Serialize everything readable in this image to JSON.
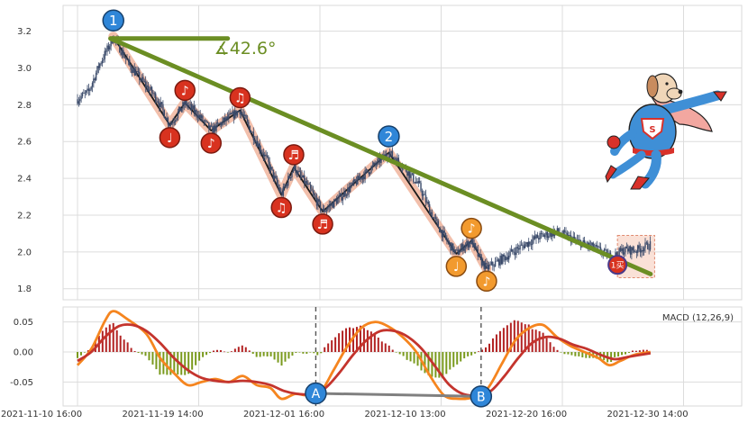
{
  "chart_data": [
    {
      "type": "candlestick",
      "x_ticks": [
        "2021-11-10 16:00",
        "2021-11-19 14:00",
        "2021-12-01 16:00",
        "2021-12-10 13:00",
        "2021-12-20 16:00",
        "2021-12-30 14:00"
      ],
      "y_ticks": [
        "3.2",
        "3.0",
        "2.8",
        "2.6",
        "2.4",
        "2.2",
        "2.0",
        "1.8"
      ],
      "ylim": [
        1.74,
        3.34
      ],
      "price_path": [
        [
          0.0,
          2.83
        ],
        [
          0.4,
          2.87
        ],
        [
          0.8,
          3.02
        ],
        [
          1.15,
          3.12
        ],
        [
          1.3,
          3.17
        ],
        [
          1.6,
          3.09
        ],
        [
          1.9,
          3.01
        ],
        [
          2.4,
          2.92
        ],
        [
          2.9,
          2.83
        ],
        [
          3.35,
          2.69
        ],
        [
          3.9,
          2.81
        ],
        [
          4.35,
          2.75
        ],
        [
          4.85,
          2.66
        ],
        [
          5.4,
          2.72
        ],
        [
          5.9,
          2.77
        ],
        [
          6.4,
          2.63
        ],
        [
          6.9,
          2.49
        ],
        [
          7.4,
          2.31
        ],
        [
          7.85,
          2.46
        ],
        [
          8.35,
          2.36
        ],
        [
          8.9,
          2.22
        ],
        [
          9.5,
          2.29
        ],
        [
          10.1,
          2.38
        ],
        [
          10.7,
          2.46
        ],
        [
          11.3,
          2.54
        ],
        [
          11.8,
          2.47
        ],
        [
          12.4,
          2.36
        ],
        [
          12.9,
          2.19
        ],
        [
          13.4,
          2.06
        ],
        [
          13.75,
          1.99
        ],
        [
          14.0,
          2.03
        ],
        [
          14.3,
          2.06
        ],
        [
          14.6,
          1.96
        ],
        [
          14.85,
          1.91
        ],
        [
          15.4,
          1.96
        ],
        [
          16.0,
          2.02
        ],
        [
          16.7,
          2.08
        ],
        [
          17.4,
          2.11
        ],
        [
          18.1,
          2.06
        ],
        [
          18.8,
          2.02
        ],
        [
          19.4,
          1.97
        ],
        [
          19.8,
          2.01
        ],
        [
          20.3,
          2.01
        ],
        [
          20.8,
          2.04
        ]
      ],
      "trend_line": {
        "from": [
          1.2,
          3.16
        ],
        "to": [
          20.8,
          1.88
        ],
        "angle_label": "∡42.6°"
      },
      "pattern_points": [
        {
          "label": "1",
          "at": [
            1.3,
            3.17
          ],
          "side": "above",
          "kind": "peak"
        },
        {
          "label": "2",
          "at": [
            11.3,
            2.54
          ],
          "side": "above",
          "kind": "peak"
        }
      ],
      "note_markers": [
        {
          "glyph": "♩",
          "at": [
            3.35,
            2.69
          ],
          "side": "below",
          "tone": "red"
        },
        {
          "glyph": "♪",
          "at": [
            3.9,
            2.81
          ],
          "side": "above",
          "tone": "red"
        },
        {
          "glyph": "♪",
          "at": [
            4.85,
            2.66
          ],
          "side": "below",
          "tone": "red"
        },
        {
          "glyph": "♫",
          "at": [
            5.9,
            2.77
          ],
          "side": "above",
          "tone": "red"
        },
        {
          "glyph": "♫",
          "at": [
            7.4,
            2.31
          ],
          "side": "below",
          "tone": "red"
        },
        {
          "glyph": "♬",
          "at": [
            7.85,
            2.46
          ],
          "side": "above",
          "tone": "red"
        },
        {
          "glyph": "♬",
          "at": [
            8.9,
            2.22
          ],
          "side": "below",
          "tone": "red"
        },
        {
          "glyph": "♩",
          "at": [
            13.75,
            1.99
          ],
          "side": "below",
          "tone": "orange"
        },
        {
          "glyph": "♪",
          "at": [
            14.3,
            2.06
          ],
          "side": "above",
          "tone": "orange"
        },
        {
          "glyph": "♪",
          "at": [
            14.85,
            1.91
          ],
          "side": "below",
          "tone": "orange"
        }
      ],
      "trade_marker": {
        "label": "1买",
        "at": [
          19.6,
          1.93
        ]
      },
      "highlight_box": {
        "x": [
          19.6,
          20.95
        ],
        "y": [
          1.86,
          2.09
        ]
      }
    },
    {
      "type": "line",
      "legend_text": "MACD (12,26,9)",
      "y_ticks": [
        "0.05",
        "0.00",
        "-0.05"
      ],
      "ylim": [
        -0.09,
        0.075
      ],
      "dif_points": [
        [
          0.0,
          -0.022
        ],
        [
          0.5,
          0.005
        ],
        [
          1.0,
          0.052
        ],
        [
          1.3,
          0.068
        ],
        [
          1.8,
          0.055
        ],
        [
          2.5,
          0.03
        ],
        [
          3.0,
          -0.01
        ],
        [
          3.5,
          -0.035
        ],
        [
          4.0,
          -0.055
        ],
        [
          4.5,
          -0.05
        ],
        [
          5.0,
          -0.045
        ],
        [
          5.5,
          -0.05
        ],
        [
          6.0,
          -0.04
        ],
        [
          6.5,
          -0.055
        ],
        [
          7.0,
          -0.06
        ],
        [
          7.4,
          -0.078
        ],
        [
          7.9,
          -0.07
        ],
        [
          8.3,
          -0.072
        ],
        [
          8.8,
          -0.068
        ],
        [
          9.3,
          -0.03
        ],
        [
          9.8,
          0.01
        ],
        [
          10.3,
          0.04
        ],
        [
          10.8,
          0.05
        ],
        [
          11.3,
          0.042
        ],
        [
          11.8,
          0.025
        ],
        [
          12.3,
          0.0
        ],
        [
          12.8,
          -0.04
        ],
        [
          13.3,
          -0.072
        ],
        [
          13.8,
          -0.078
        ],
        [
          14.4,
          -0.075
        ],
        [
          14.9,
          -0.06
        ],
        [
          15.4,
          -0.02
        ],
        [
          15.9,
          0.02
        ],
        [
          16.4,
          0.04
        ],
        [
          16.9,
          0.045
        ],
        [
          17.4,
          0.025
        ],
        [
          17.9,
          0.01
        ],
        [
          18.4,
          0.0
        ],
        [
          18.9,
          -0.01
        ],
        [
          19.3,
          -0.022
        ],
        [
          19.7,
          -0.015
        ],
        [
          20.2,
          -0.005
        ],
        [
          20.8,
          0.0
        ]
      ],
      "dea_points": [
        [
          0.0,
          -0.015
        ],
        [
          0.5,
          0.0
        ],
        [
          1.0,
          0.025
        ],
        [
          1.5,
          0.043
        ],
        [
          2.0,
          0.045
        ],
        [
          2.5,
          0.035
        ],
        [
          3.0,
          0.015
        ],
        [
          3.5,
          -0.01
        ],
        [
          4.0,
          -0.03
        ],
        [
          4.5,
          -0.043
        ],
        [
          5.0,
          -0.048
        ],
        [
          5.5,
          -0.05
        ],
        [
          6.0,
          -0.048
        ],
        [
          6.5,
          -0.05
        ],
        [
          7.0,
          -0.055
        ],
        [
          7.5,
          -0.065
        ],
        [
          8.0,
          -0.07
        ],
        [
          8.5,
          -0.07
        ],
        [
          9.0,
          -0.06
        ],
        [
          9.5,
          -0.035
        ],
        [
          10.0,
          -0.005
        ],
        [
          10.5,
          0.02
        ],
        [
          11.0,
          0.035
        ],
        [
          11.5,
          0.035
        ],
        [
          12.0,
          0.025
        ],
        [
          12.5,
          0.005
        ],
        [
          13.0,
          -0.025
        ],
        [
          13.5,
          -0.055
        ],
        [
          14.0,
          -0.07
        ],
        [
          14.5,
          -0.072
        ],
        [
          15.0,
          -0.065
        ],
        [
          15.5,
          -0.04
        ],
        [
          16.0,
          -0.01
        ],
        [
          16.5,
          0.015
        ],
        [
          17.0,
          0.025
        ],
        [
          17.5,
          0.022
        ],
        [
          18.0,
          0.012
        ],
        [
          18.5,
          0.005
        ],
        [
          19.0,
          -0.005
        ],
        [
          19.5,
          -0.012
        ],
        [
          20.0,
          -0.008
        ],
        [
          20.8,
          -0.002
        ]
      ],
      "divergence": {
        "a": {
          "label": "A",
          "at": [
            8.65,
            -0.069
          ]
        },
        "b": {
          "label": "B",
          "at": [
            14.65,
            -0.074
          ]
        }
      }
    }
  ]
}
